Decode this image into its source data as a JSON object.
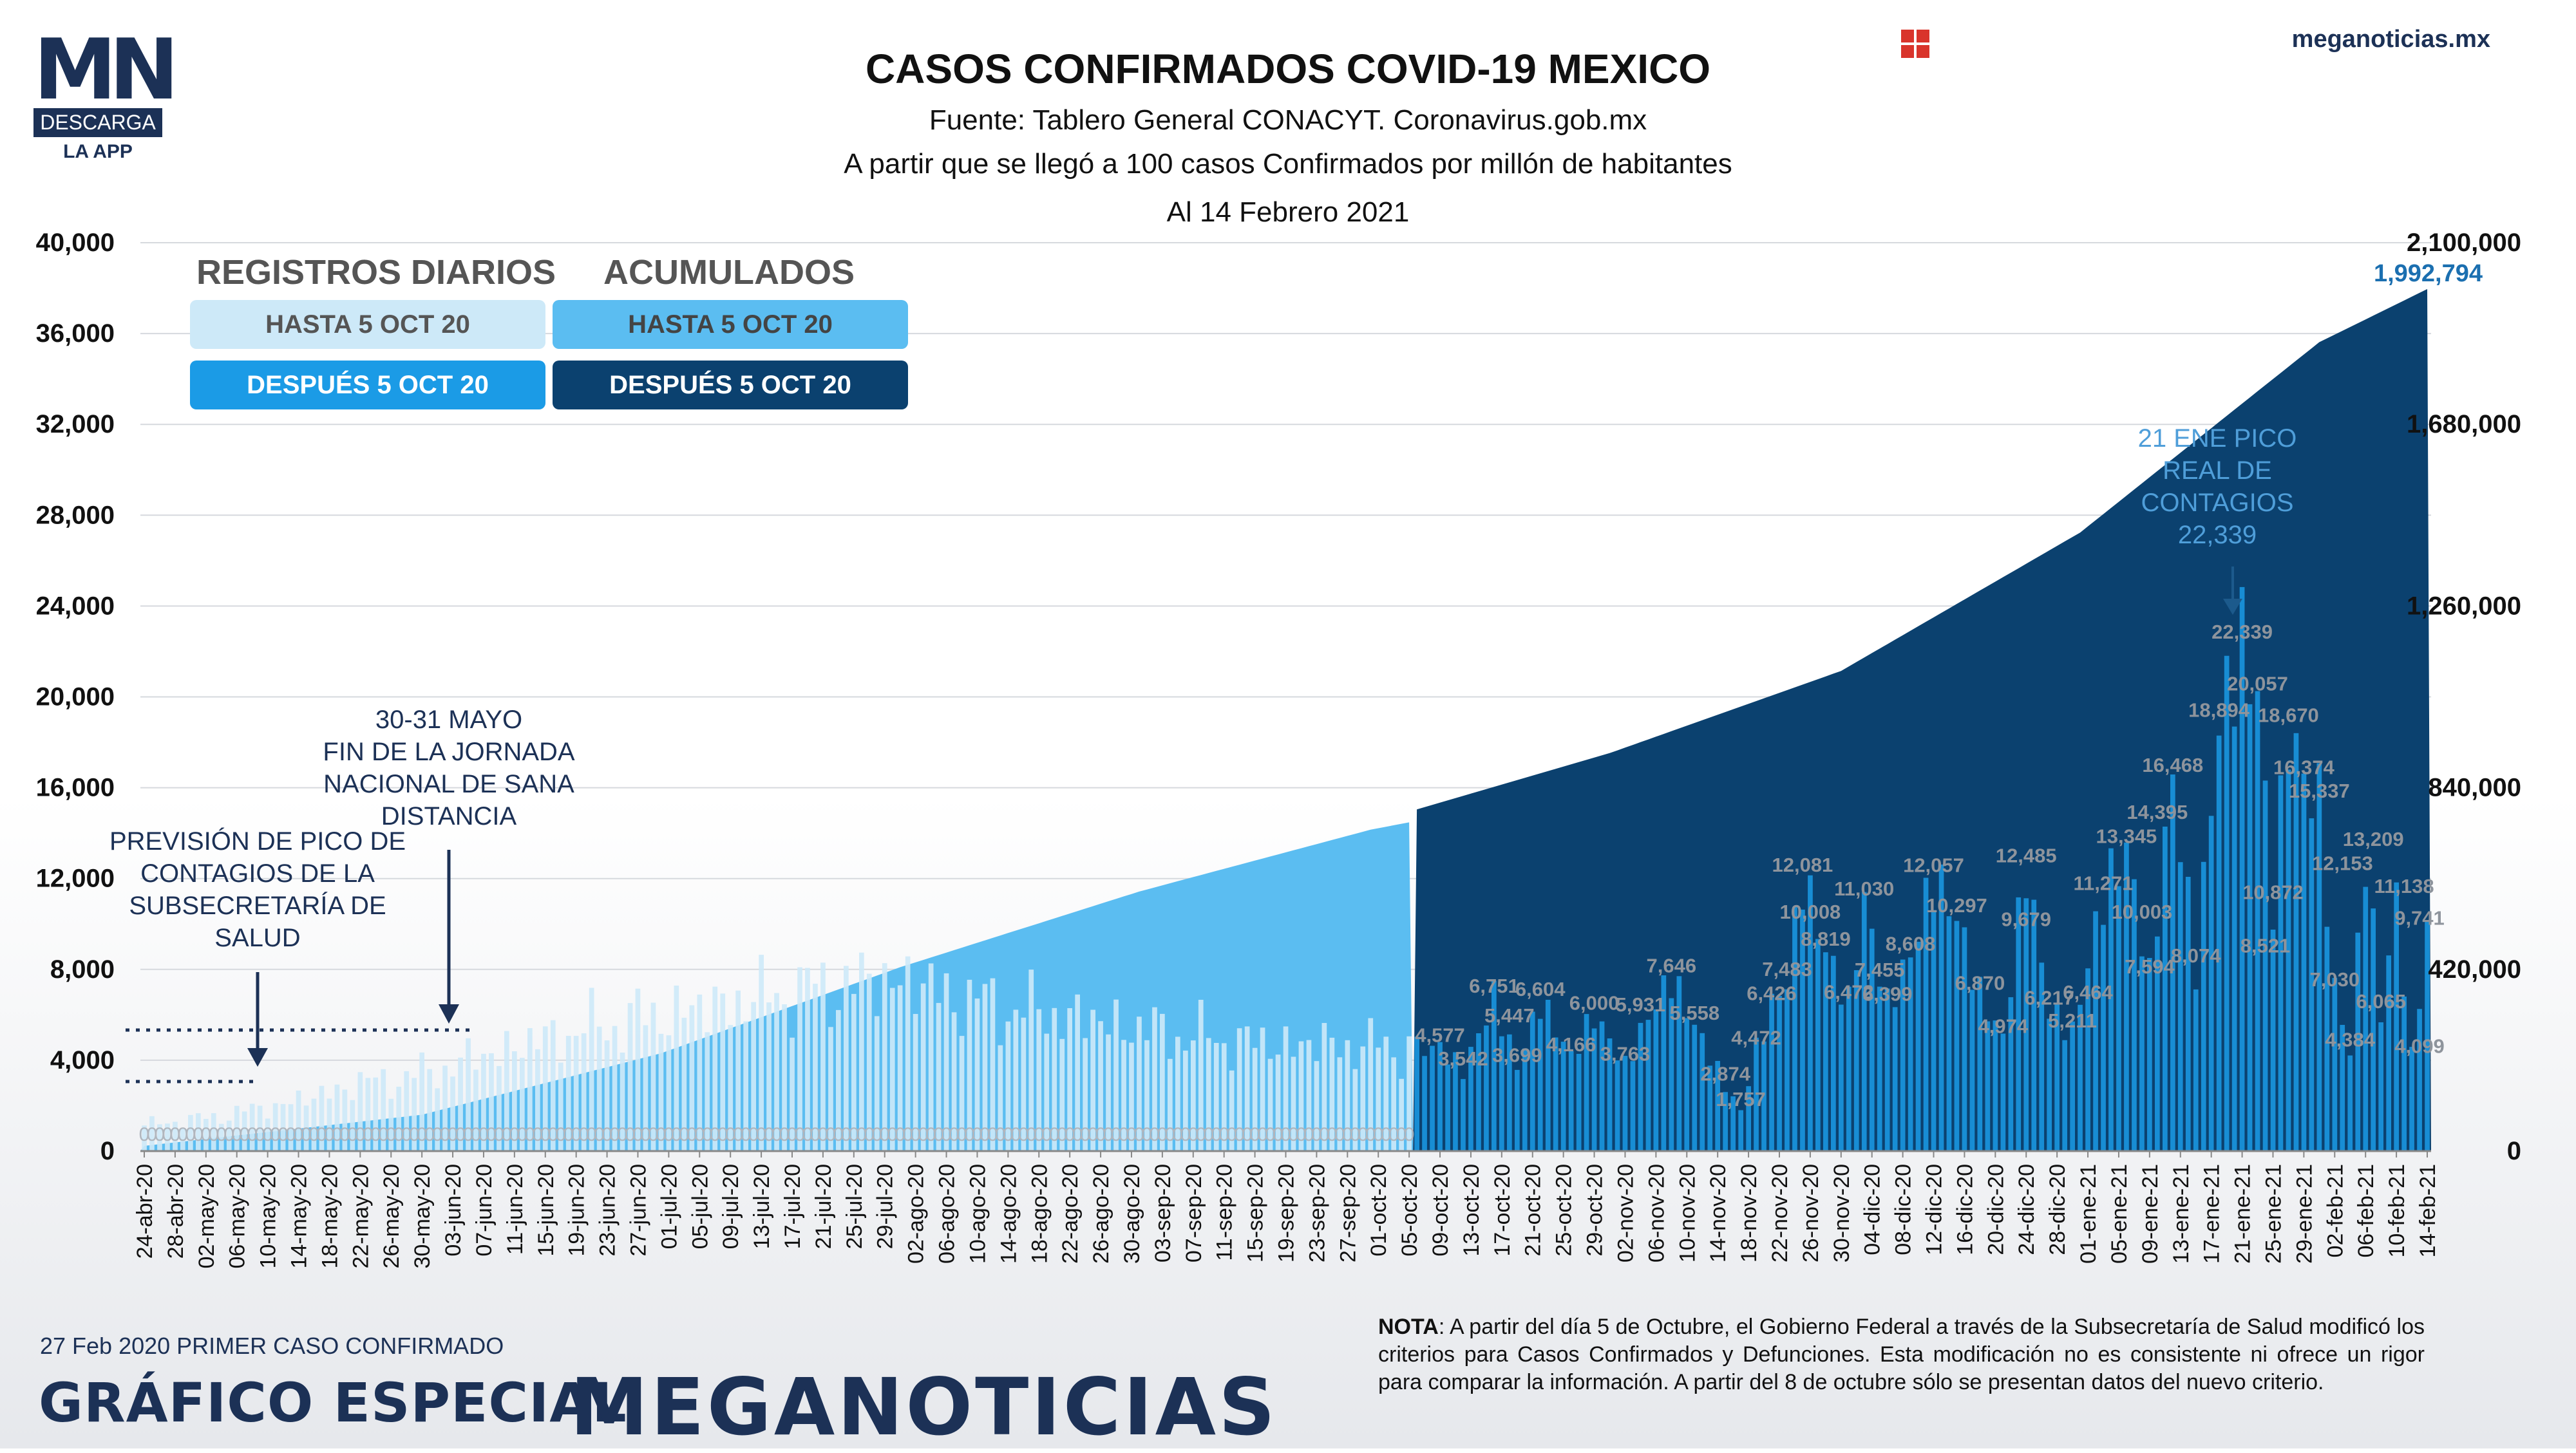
{
  "header": {
    "logo_letters": "MN",
    "logo_band": "DESCARGA",
    "logo_app": "LA APP",
    "site": "meganoticias.mx",
    "site_icon": "grid-icon",
    "title": "CASOS CONFIRMADOS COVID-19 MEXICO",
    "subtitle1": "Fuente: Tablero General CONACYT. Coronavirus.gob.mx",
    "subtitle2": "A partir que se llegó a 100 casos Confirmados por millón de habitantes",
    "subtitle3": "Al 14 Febrero 2021"
  },
  "legend": {
    "daily_head": "REGISTROS DIARIOS",
    "cum_head": "ACUMULADOS",
    "daily_before": "HASTA 5 OCT 20",
    "daily_after": "DESPUÉS 5 OCT 20",
    "cum_before": "HASTA 5 OCT 20",
    "cum_after": "DESPUÉS 5 OCT 20"
  },
  "colors": {
    "daily_before": "#cde9f8",
    "daily_after": "#1b9be6",
    "cum_before": "#5bbdf1",
    "cum_after": "#0b416f",
    "text_dark": "#1c3156"
  },
  "chart_data": {
    "type": "bar+area",
    "left_axis": {
      "ylim": [
        0,
        40000
      ],
      "ticks": [
        "0",
        "4,000",
        "8,000",
        "12,000",
        "16,000",
        "20,000",
        "24,000",
        "28,000",
        "32,000",
        "36,000",
        "40,000"
      ]
    },
    "right_axis": {
      "ylim": [
        0,
        2100000
      ],
      "ticks": [
        "0",
        "420,000",
        "840,000",
        "1,260,000",
        "1,680,000",
        "2,100,000"
      ]
    },
    "x_ticks": [
      "24-abr-20",
      "28-abr-20",
      "02-may-20",
      "06-may-20",
      "10-may-20",
      "14-may-20",
      "18-may-20",
      "22-may-20",
      "26-may-20",
      "30-may-20",
      "03-jun-20",
      "07-jun-20",
      "11-jun-20",
      "15-jun-20",
      "19-jun-20",
      "23-jun-20",
      "27-jun-20",
      "01-jul-20",
      "05-jul-20",
      "09-jul-20",
      "13-jul-20",
      "17-jul-20",
      "21-jul-20",
      "25-jul-20",
      "29-jul-20",
      "02-ago-20",
      "06-ago-20",
      "10-ago-20",
      "14-ago-20",
      "18-ago-20",
      "22-ago-20",
      "26-ago-20",
      "30-ago-20",
      "03-sep-20",
      "07-sep-20",
      "11-sep-20",
      "15-sep-20",
      "19-sep-20",
      "23-sep-20",
      "27-sep-20",
      "01-oct-20",
      "05-oct-20",
      "09-oct-20",
      "13-oct-20",
      "17-oct-20",
      "21-oct-20",
      "25-oct-20",
      "29-oct-20",
      "02-nov-20",
      "06-nov-20",
      "10-nov-20",
      "14-nov-20",
      "18-nov-20",
      "22-nov-20",
      "26-nov-20",
      "30-nov-20",
      "04-dic-20",
      "08-dic-20",
      "12-dic-20",
      "16-dic-20",
      "20-dic-20",
      "24-dic-20",
      "28-dic-20",
      "01-ene-21",
      "05-ene-21",
      "09-ene-21",
      "13-ene-21",
      "17-ene-21",
      "21-ene-21",
      "25-ene-21",
      "29-ene-21",
      "02-feb-21",
      "06-feb-21",
      "10-feb-21",
      "14-feb-21"
    ],
    "daily_anchors": [
      [
        "24-abr-20",
        1200
      ],
      [
        "01-may-20",
        1400
      ],
      [
        "08-may-20",
        1800
      ],
      [
        "15-may-20",
        2300
      ],
      [
        "22-may-20",
        3000
      ],
      [
        "29-may-20",
        3300
      ],
      [
        "05-jun-20",
        4000
      ],
      [
        "12-jun-20",
        4700
      ],
      [
        "19-jun-20",
        5300
      ],
      [
        "26-jun-20",
        5800
      ],
      [
        "03-jul-20",
        6200
      ],
      [
        "10-jul-20",
        6600
      ],
      [
        "17-jul-20",
        7000
      ],
      [
        "24-jul-20",
        7300
      ],
      [
        "31-jul-20",
        7600
      ],
      [
        "07-ago-20",
        6800
      ],
      [
        "14-ago-20",
        6300
      ],
      [
        "21-ago-20",
        6000
      ],
      [
        "28-ago-20",
        5600
      ],
      [
        "04-sep-20",
        5200
      ],
      [
        "11-sep-20",
        4900
      ],
      [
        "18-sep-20",
        4700
      ],
      [
        "25-sep-20",
        4700
      ],
      [
        "02-oct-20",
        4600
      ],
      [
        "05-oct-20",
        4500
      ],
      [
        "09-oct-20",
        4577
      ],
      [
        "12-oct-20",
        3542
      ],
      [
        "16-oct-20",
        6751
      ],
      [
        "19-oct-20",
        3699
      ],
      [
        "22-oct-20",
        6604
      ],
      [
        "26-oct-20",
        4166
      ],
      [
        "29-oct-20",
        6000
      ],
      [
        "02-nov-20",
        3763
      ],
      [
        "05-nov-20",
        5931
      ],
      [
        "08-nov-20",
        7646
      ],
      [
        "11-nov-20",
        5558
      ],
      [
        "15-nov-20",
        2874
      ],
      [
        "17-nov-20",
        1757
      ],
      [
        "19-nov-20",
        4472
      ],
      [
        "21-nov-20",
        6426
      ],
      [
        "23-nov-20",
        7483
      ],
      [
        "25-nov-20",
        12081
      ],
      [
        "28-nov-20",
        8819
      ],
      [
        "01-dic-20",
        6472
      ],
      [
        "03-dic-20",
        11030
      ],
      [
        "06-dic-20",
        6399
      ],
      [
        "09-dic-20",
        8608
      ],
      [
        "12-dic-20",
        12057
      ],
      [
        "15-dic-20",
        10297
      ],
      [
        "18-dic-20",
        6870
      ],
      [
        "21-dic-20",
        4974
      ],
      [
        "24-dic-20",
        12485
      ],
      [
        "27-dic-20",
        6217
      ],
      [
        "30-dic-20",
        5211
      ],
      [
        "03-ene-21",
        11271
      ],
      [
        "06-ene-21",
        13345
      ],
      [
        "09-ene-21",
        7594
      ],
      [
        "12-ene-21",
        16468
      ],
      [
        "15-ene-21",
        8074
      ],
      [
        "18-ene-21",
        18894
      ],
      [
        "21-ene-21",
        22339
      ],
      [
        "23-ene-21",
        20057
      ],
      [
        "25-ene-21",
        10872
      ],
      [
        "27-ene-21",
        18670
      ],
      [
        "29-ene-21",
        16374
      ],
      [
        "31-ene-21",
        15337
      ],
      [
        "02-feb-21",
        7030
      ],
      [
        "04-feb-21",
        4384
      ],
      [
        "06-feb-21",
        13209
      ],
      [
        "08-feb-21",
        6065
      ],
      [
        "10-feb-21",
        11138
      ],
      [
        "12-feb-21",
        4099
      ],
      [
        "14-feb-21",
        9741
      ]
    ],
    "cumulative_anchors": [
      [
        "24-abr-20",
        12000
      ],
      [
        "30-may-20",
        84000
      ],
      [
        "30-jun-20",
        226000
      ],
      [
        "31-jul-20",
        425000
      ],
      [
        "31-ago-20",
        600000
      ],
      [
        "30-sep-20",
        743000
      ],
      [
        "05-oct-20",
        760000
      ],
      [
        "06-oct-20",
        790000
      ],
      [
        "31-oct-20",
        920000
      ],
      [
        "30-nov-20",
        1110000
      ],
      [
        "31-dic-20",
        1430000
      ],
      [
        "31-ene-21",
        1870000
      ],
      [
        "14-feb-21",
        1992794
      ]
    ],
    "data_labels": [
      "0",
      "4,577",
      "3,542",
      "6,751",
      "5,447",
      "3,699",
      "6,604",
      "4,166",
      "6,000",
      "5,931",
      "3,763",
      "7,646",
      "5,558",
      "2,874",
      "1,757",
      "4,472",
      "6,426",
      "7,483",
      "12,081",
      "10,008",
      "8,819",
      "6,472",
      "11,030",
      "7,455",
      "6,399",
      "12,057",
      "8,608",
      "10,297",
      "6,870",
      "12,485",
      "9,679",
      "6,217",
      "4,974",
      "11,271",
      "6,464",
      "5,211",
      "13,345",
      "10,003",
      "14,395",
      "7,594",
      "16,468",
      "8,074",
      "18,894",
      "22,339",
      "20,057",
      "10,872",
      "8,521",
      "18,670",
      "16,374",
      "15,337",
      "7,030",
      "12,153",
      "13,209",
      "4,384",
      "6,065",
      "11,138",
      "9,741",
      "4,099"
    ],
    "final_cumulative_label": "1,992,794",
    "annotations": {
      "peak": "21 ENE PICO REAL DE CONTAGIOS 22,339",
      "jornada": "30-31 MAYO FIN DE LA JORNADA NACIONAL DE SANA DISTANCIA",
      "prevision": "PREVISIÓN DE PICO DE CONTAGIOS DE LA SUBSECRETARÍA DE SALUD"
    }
  },
  "footer": {
    "first_case": "27 Feb 2020 PRIMER CASO CONFIRMADO",
    "grafico": "GRÁFICO ESPECIAL",
    "brand": "MEGANOTICIAS",
    "nota_label": "NOTA",
    "nota_text": ": A partir del día 5 de Octubre, el Gobierno Federal a través de la Subsecretaría de Salud modificó los criterios para Casos Confirmados y Defunciones. Esta modificación no es consistente ni ofrece un rigor para comparar la información. A partir del 8 de octubre sólo se presentan datos del nuevo criterio."
  }
}
